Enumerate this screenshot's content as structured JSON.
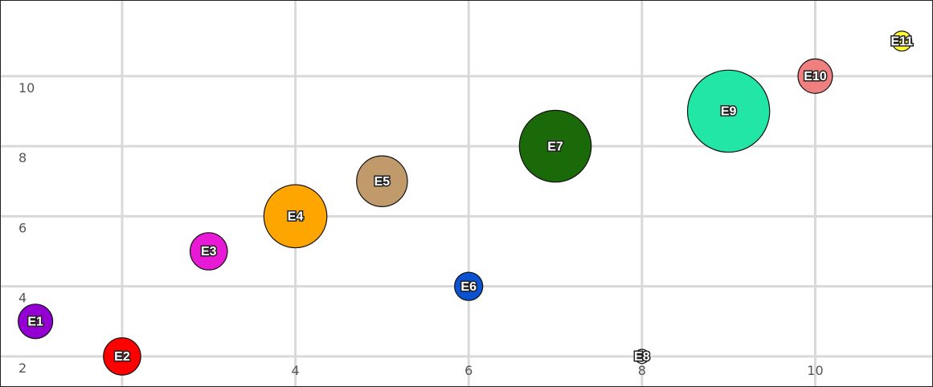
{
  "chart_data": {
    "type": "scatter",
    "style": "bubble",
    "title": "",
    "xlabel": "",
    "ylabel": "",
    "xlim": [
      0.6,
      11.35
    ],
    "ylim": [
      1.15,
      12.15
    ],
    "grid": true,
    "x_ticks": [
      2,
      4,
      6,
      8,
      10
    ],
    "y_ticks": [
      2,
      4,
      6,
      8,
      10
    ],
    "points": [
      {
        "label": "E1",
        "x": 1,
        "y": 3,
        "size": 3,
        "color": "#9400d3"
      },
      {
        "label": "E2",
        "x": 2,
        "y": 2,
        "size": 3.5,
        "color": "#ff0000"
      },
      {
        "label": "E3",
        "x": 3,
        "y": 5,
        "size": 3.5,
        "color": "#e91ad6"
      },
      {
        "label": "E4",
        "x": 4,
        "y": 6,
        "size": 10,
        "color": "#ffa500"
      },
      {
        "label": "E5",
        "x": 5,
        "y": 7,
        "size": 6.5,
        "color": "#c19a6b"
      },
      {
        "label": "E6",
        "x": 6,
        "y": 4,
        "size": 2,
        "color": "#0a52d1"
      },
      {
        "label": "E7",
        "x": 7,
        "y": 8,
        "size": 13,
        "color": "#1a6a0a"
      },
      {
        "label": "E8",
        "x": 8,
        "y": 2,
        "size": 0.5,
        "color": "#ffffff"
      },
      {
        "label": "E9",
        "x": 9,
        "y": 9,
        "size": 17,
        "color": "#22e6a6"
      },
      {
        "label": "E10",
        "x": 10,
        "y": 10,
        "size": 3,
        "color": "#f08080"
      },
      {
        "label": "E11",
        "x": 11,
        "y": 11,
        "size": 1,
        "color": "#ffff33"
      }
    ]
  }
}
